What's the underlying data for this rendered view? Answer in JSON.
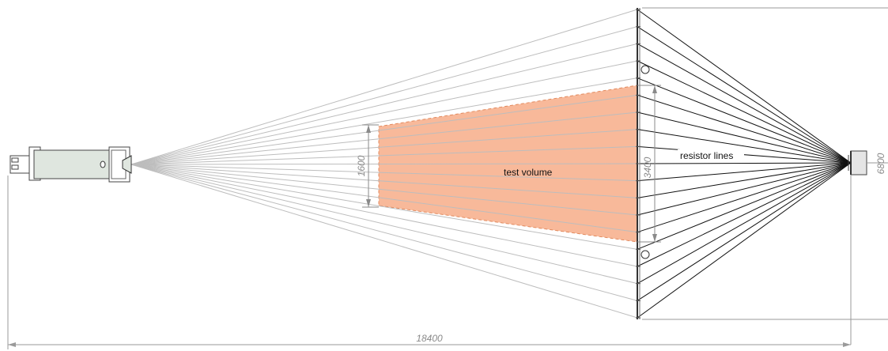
{
  "labels": {
    "test_volume": "test volume",
    "resistor_lines": "resistor lines"
  },
  "dimensions": {
    "overall_length": "18400",
    "overall_height": "6800",
    "test_volume_entry_height": "1600",
    "test_volume_exit_height": "3400"
  },
  "colors": {
    "test_volume_fill": "#f8b99a",
    "test_volume_border": "#e28a5e",
    "light_lines": "#bdbdbd",
    "resistor_lines": "#111111",
    "fan_body": "#dfe6df",
    "dimension_lines": "#9a9a9a"
  },
  "icons": {
    "fan_unit": "fan-unit-icon",
    "sensor_head": "sensor-head-icon",
    "resistor_frame": "resistor-frame-icon"
  }
}
